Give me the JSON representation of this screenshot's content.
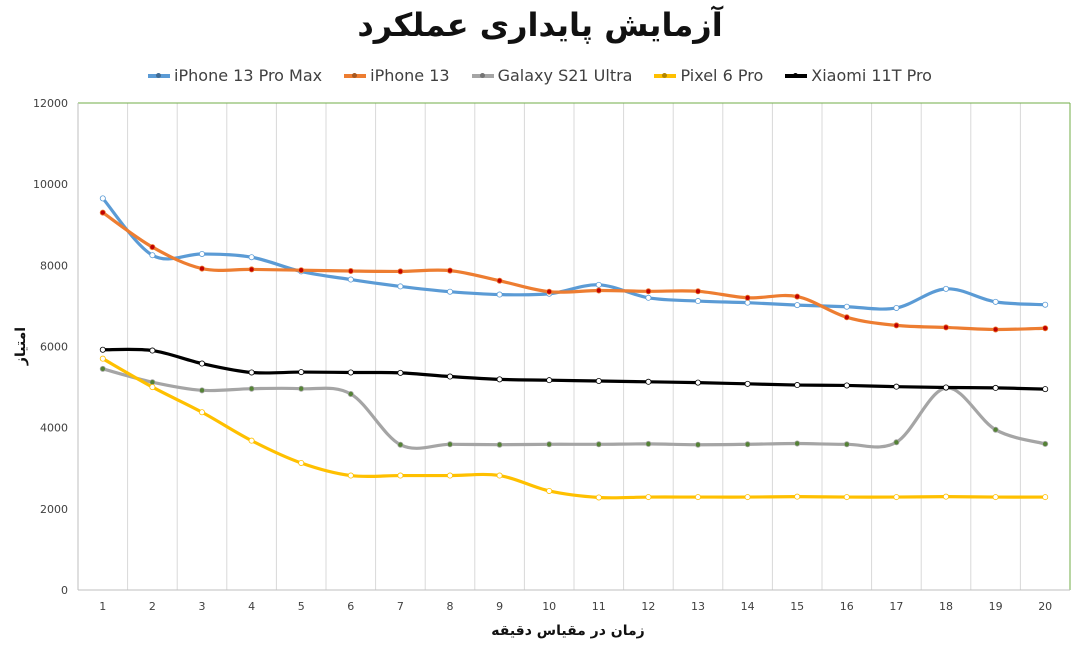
{
  "chart_data": {
    "type": "line",
    "title": "آزمایش پایداری عملکرد",
    "xlabel": "زمان در مقیاس دقیقه",
    "ylabel": "امتیاز",
    "x": [
      1,
      2,
      3,
      4,
      5,
      6,
      7,
      8,
      9,
      10,
      11,
      12,
      13,
      14,
      15,
      16,
      17,
      18,
      19,
      20
    ],
    "ylim": [
      0,
      12000
    ],
    "yticks": [
      0,
      2000,
      4000,
      6000,
      8000,
      10000,
      12000
    ],
    "grid": "vertical",
    "legend_position": "top",
    "series": [
      {
        "name": "iPhone 13 Pro Max",
        "color": "#5b9bd5",
        "marker_color": "#ffffff",
        "values": [
          9650,
          8250,
          8280,
          8200,
          7850,
          7650,
          7480,
          7350,
          7280,
          7300,
          7520,
          7200,
          7120,
          7080,
          7020,
          6980,
          6950,
          7420,
          7100,
          7030
        ]
      },
      {
        "name": "iPhone 13",
        "color": "#ed7d31",
        "marker_color": "#c00000",
        "values": [
          9300,
          8450,
          7920,
          7900,
          7880,
          7860,
          7850,
          7870,
          7620,
          7350,
          7380,
          7360,
          7360,
          7200,
          7230,
          6720,
          6520,
          6470,
          6420,
          6450
        ]
      },
      {
        "name": "Galaxy S21 Ultra",
        "color": "#a5a5a5",
        "marker_color": "#548235",
        "values": [
          5450,
          5120,
          4920,
          4960,
          4960,
          4830,
          3580,
          3590,
          3580,
          3590,
          3590,
          3600,
          3580,
          3590,
          3610,
          3590,
          3640,
          4980,
          3950,
          3600
        ]
      },
      {
        "name": "Pixel 6 Pro",
        "color": "#ffc000",
        "marker_color": "#ffffff",
        "values": [
          5700,
          5000,
          4380,
          3680,
          3130,
          2820,
          2820,
          2820,
          2820,
          2440,
          2280,
          2290,
          2290,
          2290,
          2300,
          2290,
          2290,
          2300,
          2290,
          2290
        ]
      },
      {
        "name": "Xiaomi 11T Pro",
        "color": "#000000",
        "marker_color": "#ffffff",
        "values": [
          5920,
          5900,
          5580,
          5360,
          5370,
          5360,
          5350,
          5260,
          5190,
          5170,
          5150,
          5130,
          5110,
          5080,
          5050,
          5040,
          5010,
          4990,
          4980,
          4950
        ]
      }
    ]
  }
}
